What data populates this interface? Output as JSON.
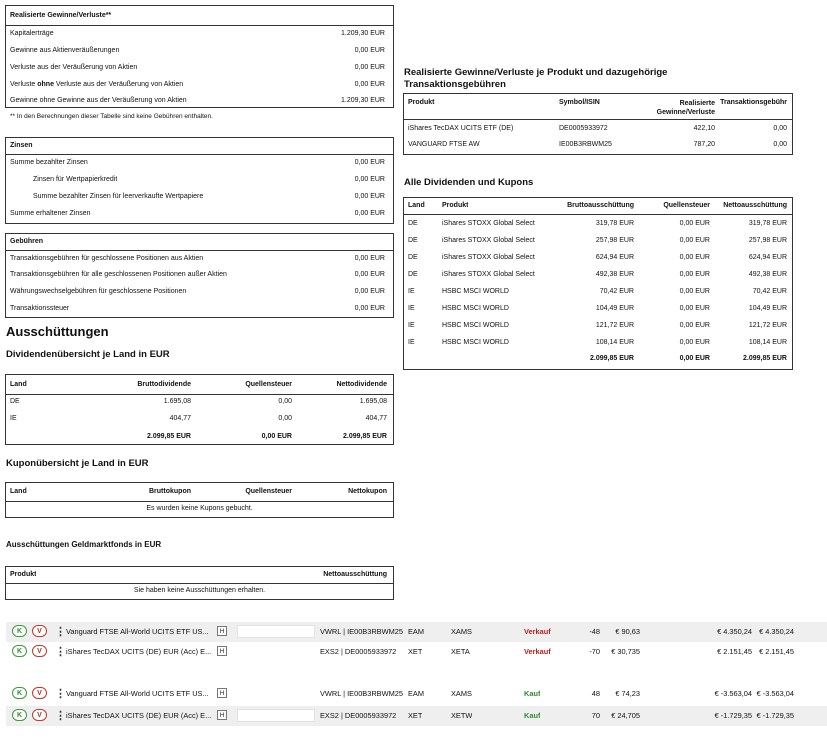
{
  "realized": {
    "title": "Realisierte Gewinne/Verluste**",
    "rows": [
      {
        "label": "Kapitalerträge",
        "value": "1.209,30 EUR"
      },
      {
        "label": "Gewinne aus Aktienveräußerungen",
        "value": "0,00 EUR"
      },
      {
        "label": "Verluste aus der Veräußerung von Aktien",
        "value": "0,00 EUR"
      },
      {
        "label_pre": "Verluste ",
        "label_bold": "ohne",
        "label_post": " Verluste aus der Veräußerung von Aktien",
        "value": "0,00 EUR"
      },
      {
        "label": "Gewinne ohne Gewinne aus der Veräußerung von Aktien",
        "value": "1.209,30 EUR"
      }
    ],
    "footnote": "** In den Berechnungen dieser Tabelle sind keine Gebühren enthalten."
  },
  "zinsen": {
    "title": "Zinsen",
    "rows": [
      {
        "label": "Summe bezahlter Zinsen",
        "value": "0,00 EUR"
      },
      {
        "label": "Zinsen für Wertpapierkredit",
        "value": "0,00 EUR"
      },
      {
        "label": "Summe bezahlter Zinsen für leerverkaufte Wertpapiere",
        "value": "0,00 EUR"
      },
      {
        "label": "Summe erhaltener Zinsen",
        "value": "0,00 EUR"
      }
    ]
  },
  "gebuehren": {
    "title": "Gebühren",
    "rows": [
      {
        "label": "Transaktionsgebühren für geschlossene Positionen aus Aktien",
        "value": "0,00 EUR"
      },
      {
        "label": "Transaktionsgebühren für alle geschlossenen Positionen außer Aktien",
        "value": "0,00 EUR"
      },
      {
        "label": "Währungswechselgebühren für geschlossene Positionen",
        "value": "0,00 EUR"
      },
      {
        "label": "Transaktionssteuer",
        "value": "0,00 EUR"
      }
    ]
  },
  "ausschuettungen": {
    "title": "Ausschüttungen",
    "dividenden_land": {
      "title": "Dividendenübersicht je Land in EUR",
      "headers": [
        "Land",
        "Bruttodividende",
        "Quellensteuer",
        "Nettodividende"
      ],
      "rows": [
        [
          "DE",
          "1.695,08",
          "0,00",
          "1.695,08"
        ],
        [
          "IE",
          "404,77",
          "0,00",
          "404,77"
        ]
      ],
      "totals": [
        "2.099,85 EUR",
        "0,00 EUR",
        "2.099,85 EUR"
      ]
    },
    "kupon_land": {
      "title": "Kuponübersicht je Land in EUR",
      "headers": [
        "Land",
        "Bruttokupon",
        "Quellensteuer",
        "Nettokupon"
      ],
      "empty": "Es wurden keine Kupons gebucht."
    },
    "geldmarkt": {
      "title": "Ausschüttungen Geldmarktfonds in EUR",
      "headers": [
        "Produkt",
        "Nettoausschüttung"
      ],
      "empty": "Sie haben keine Ausschüttungen erhalten."
    }
  },
  "realized_product": {
    "title_line1": "Realisierte Gewinne/Verluste je Produkt und dazugehörige",
    "title_line2": "Transaktionsgebühren",
    "headers": [
      "Produkt",
      "Symbol/ISIN",
      "Realisierte",
      "Gewinne/Verluste",
      "Transaktionsgebühr"
    ],
    "rows": [
      [
        "iShares TecDAX UCITS ETF (DE)",
        "DE0005933972",
        "422,10",
        "0,00"
      ],
      [
        "VANGUARD FTSE AW",
        "IE00B3RBWM25",
        "787,20",
        "0,00"
      ]
    ]
  },
  "dividends_all": {
    "title": "Alle Dividenden und Kupons",
    "headers": [
      "Land",
      "Produkt",
      "Bruttoausschüttung",
      "Quellensteuer",
      "Nettoausschüttung"
    ],
    "rows": [
      [
        "DE",
        "iShares STOXX Global Select",
        "319,78 EUR",
        "0,00 EUR",
        "319,78 EUR"
      ],
      [
        "DE",
        "iShares STOXX Global Select",
        "257,98 EUR",
        "0,00 EUR",
        "257,98 EUR"
      ],
      [
        "DE",
        "iShares STOXX Global Select",
        "624,94 EUR",
        "0,00 EUR",
        "624,94 EUR"
      ],
      [
        "DE",
        "iShares STOXX Global Select",
        "492,38 EUR",
        "0,00 EUR",
        "492,38 EUR"
      ],
      [
        "IE",
        "HSBC MSCI WORLD",
        "70,42 EUR",
        "0,00 EUR",
        "70,42 EUR"
      ],
      [
        "IE",
        "HSBC MSCI WORLD",
        "104,49 EUR",
        "0,00 EUR",
        "104,49 EUR"
      ],
      [
        "IE",
        "HSBC MSCI WORLD",
        "121,72 EUR",
        "0,00 EUR",
        "121,72 EUR"
      ],
      [
        "IE",
        "HSBC MSCI WORLD",
        "108,14 EUR",
        "0,00 EUR",
        "108,14 EUR"
      ]
    ],
    "totals": [
      "2.099,85 EUR",
      "0,00 EUR",
      "2.099,85 EUR"
    ]
  },
  "trades": {
    "k_label": "K",
    "v_label": "V",
    "h_label": "H",
    "rows": [
      {
        "name": "Vanguard FTSE All-World UCITS ETF US...",
        "symbol": "VWRL | IE00B3RBWM25",
        "exchange": "EAM",
        "venue": "XAMS",
        "side": "Verkauf",
        "qty": "-48",
        "price": "€ 90,63",
        "value": "€ 4.350,24",
        "value2": "€ 4.350,24"
      },
      {
        "name": "iShares TecDAX UCITS (DE) EUR (Acc) E...",
        "symbol": "EXS2 | DE0005933972",
        "exchange": "XET",
        "venue": "XETA",
        "side": "Verkauf",
        "qty": "-70",
        "price": "€ 30,735",
        "value": "€ 2.151,45",
        "value2": "€ 2.151,45"
      },
      {
        "name": "Vanguard FTSE All-World UCITS ETF US...",
        "symbol": "VWRL | IE00B3RBWM25",
        "exchange": "EAM",
        "venue": "XAMS",
        "side": "Kauf",
        "qty": "48",
        "price": "€ 74,23",
        "value": "€ -3.563,04",
        "value2": "€ -3.563,04"
      },
      {
        "name": "iShares TecDAX UCITS (DE) EUR (Acc) E...",
        "symbol": "EXS2 | DE0005933972",
        "exchange": "XET",
        "venue": "XETW",
        "side": "Kauf",
        "qty": "70",
        "price": "€ 24,705",
        "value": "€ -1.729,35",
        "value2": "€ -1.729,35"
      }
    ]
  }
}
